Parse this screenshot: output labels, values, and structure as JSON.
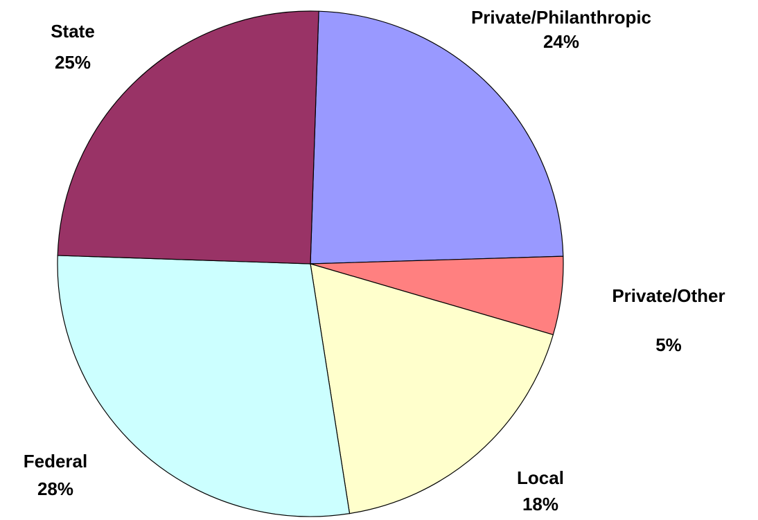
{
  "chart_data": {
    "type": "pie",
    "title": "",
    "slices": [
      {
        "label": "Private/Philanthropic",
        "percent_label": "24%",
        "value": 24,
        "color": "#9999FF"
      },
      {
        "label": "Private/Other",
        "percent_label": "5%",
        "value": 5,
        "color": "#FF8080"
      },
      {
        "label": "Local",
        "percent_label": "18%",
        "value": 18,
        "color": "#FFFFCC"
      },
      {
        "label": "Federal",
        "percent_label": "28%",
        "value": 28,
        "color": "#CCFFFF"
      },
      {
        "label": "State",
        "percent_label": "25%",
        "value": 25,
        "color": "#993366"
      }
    ],
    "legend": "none",
    "labels": "outside slices"
  }
}
